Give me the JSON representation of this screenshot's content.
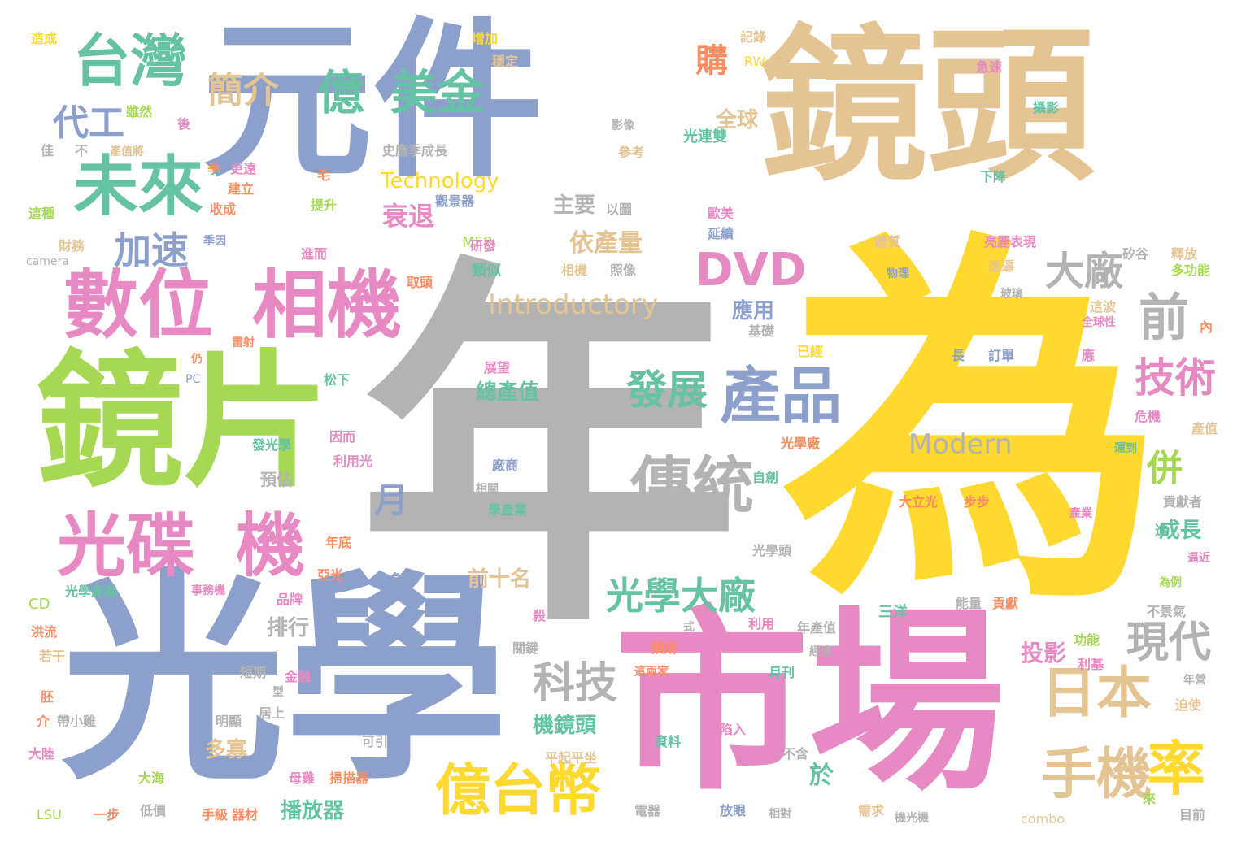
{
  "colors": {
    "background": "#ffffff",
    "blue": "#8da0cb",
    "sand": "#e5c494",
    "gray": "#b3b3b3",
    "yellow": "#ffd92f",
    "pink": "#e78ac3",
    "green": "#a6d854",
    "teal": "#66c2a5",
    "orange": "#fc8d62"
  },
  "words": [
    "元件",
    "鏡頭",
    "年",
    "為",
    "光學",
    "市場",
    "鏡片",
    "數位",
    "相機",
    "光碟",
    "機",
    "台灣",
    "未來",
    "億",
    "美金",
    "傳統",
    "產品",
    "日本",
    "手機",
    "億台幣",
    "率",
    "DVD",
    "前",
    "大廠",
    "技術",
    "發展",
    "光學大廠",
    "現代",
    "科技",
    "簡介",
    "加速",
    "代工",
    "月",
    "併",
    "Introductory",
    "Modern",
    "Technology",
    "購",
    "全球",
    "衰退",
    "依產量",
    "主要",
    "應用",
    "投影",
    "排行",
    "前十名",
    "成長",
    "總產值",
    "機鏡頭",
    "播放器",
    "於",
    "多寡",
    "光連雙",
    "MFP",
    "類似",
    "研發",
    "以圖",
    "照像",
    "相機",
    "影像",
    "參考",
    "歐美",
    "延續",
    "體質",
    "物理",
    "亮麗表現",
    "矽谷",
    "釋放",
    "多功能",
    "進逼",
    "玻璃",
    "全球性",
    "內",
    "這波",
    "應",
    "長",
    "訂單",
    "危機",
    "產值",
    "運到",
    "大立光",
    "步步",
    "貢獻者",
    "產業",
    "進",
    "逼近",
    "為例",
    "不景氣",
    "能量",
    "貢獻",
    "三洋",
    "利用",
    "年產值",
    "經濟",
    "預期",
    "式",
    "月刊",
    "這兩家",
    "資料",
    "陷入",
    "不含",
    "平起平坐",
    "可引",
    "明顯",
    "居上",
    "帶小雞",
    "手級",
    "器材",
    "電器",
    "放眼",
    "相對",
    "需求",
    "機光機",
    "combo",
    "目前",
    "來",
    "迫使",
    "年營",
    "利基",
    "功能",
    "大海",
    "母雞",
    "掃描器",
    "大陸",
    "LSU",
    "一步",
    "低價",
    "介",
    "胚",
    "若干",
    "洪流",
    "短期",
    "金融",
    "品牌",
    "型",
    "事務機",
    "光學產業",
    "亞光",
    "CD",
    "年底",
    "光學頭",
    "負起",
    "殺",
    "關鍵",
    "學產業",
    "相關",
    "廠商",
    "預估",
    "利用光",
    "光學廠",
    "自創",
    "發光學",
    "因而",
    "松下",
    "PC",
    "仍",
    "雷射",
    "已經",
    "基礎",
    "展望",
    "camera",
    "財務",
    "季因",
    "進而",
    "這種",
    "收成",
    "建立",
    "提升",
    "更遠",
    "季",
    "產值將",
    "佳",
    "不",
    "雖然",
    "後",
    "造成",
    "增加",
    "穩定",
    "記錄",
    "RW",
    "急速",
    "攝影",
    "全",
    "下降",
    "史應季成長",
    "毛",
    "取頭",
    "觀景器"
  ]
}
